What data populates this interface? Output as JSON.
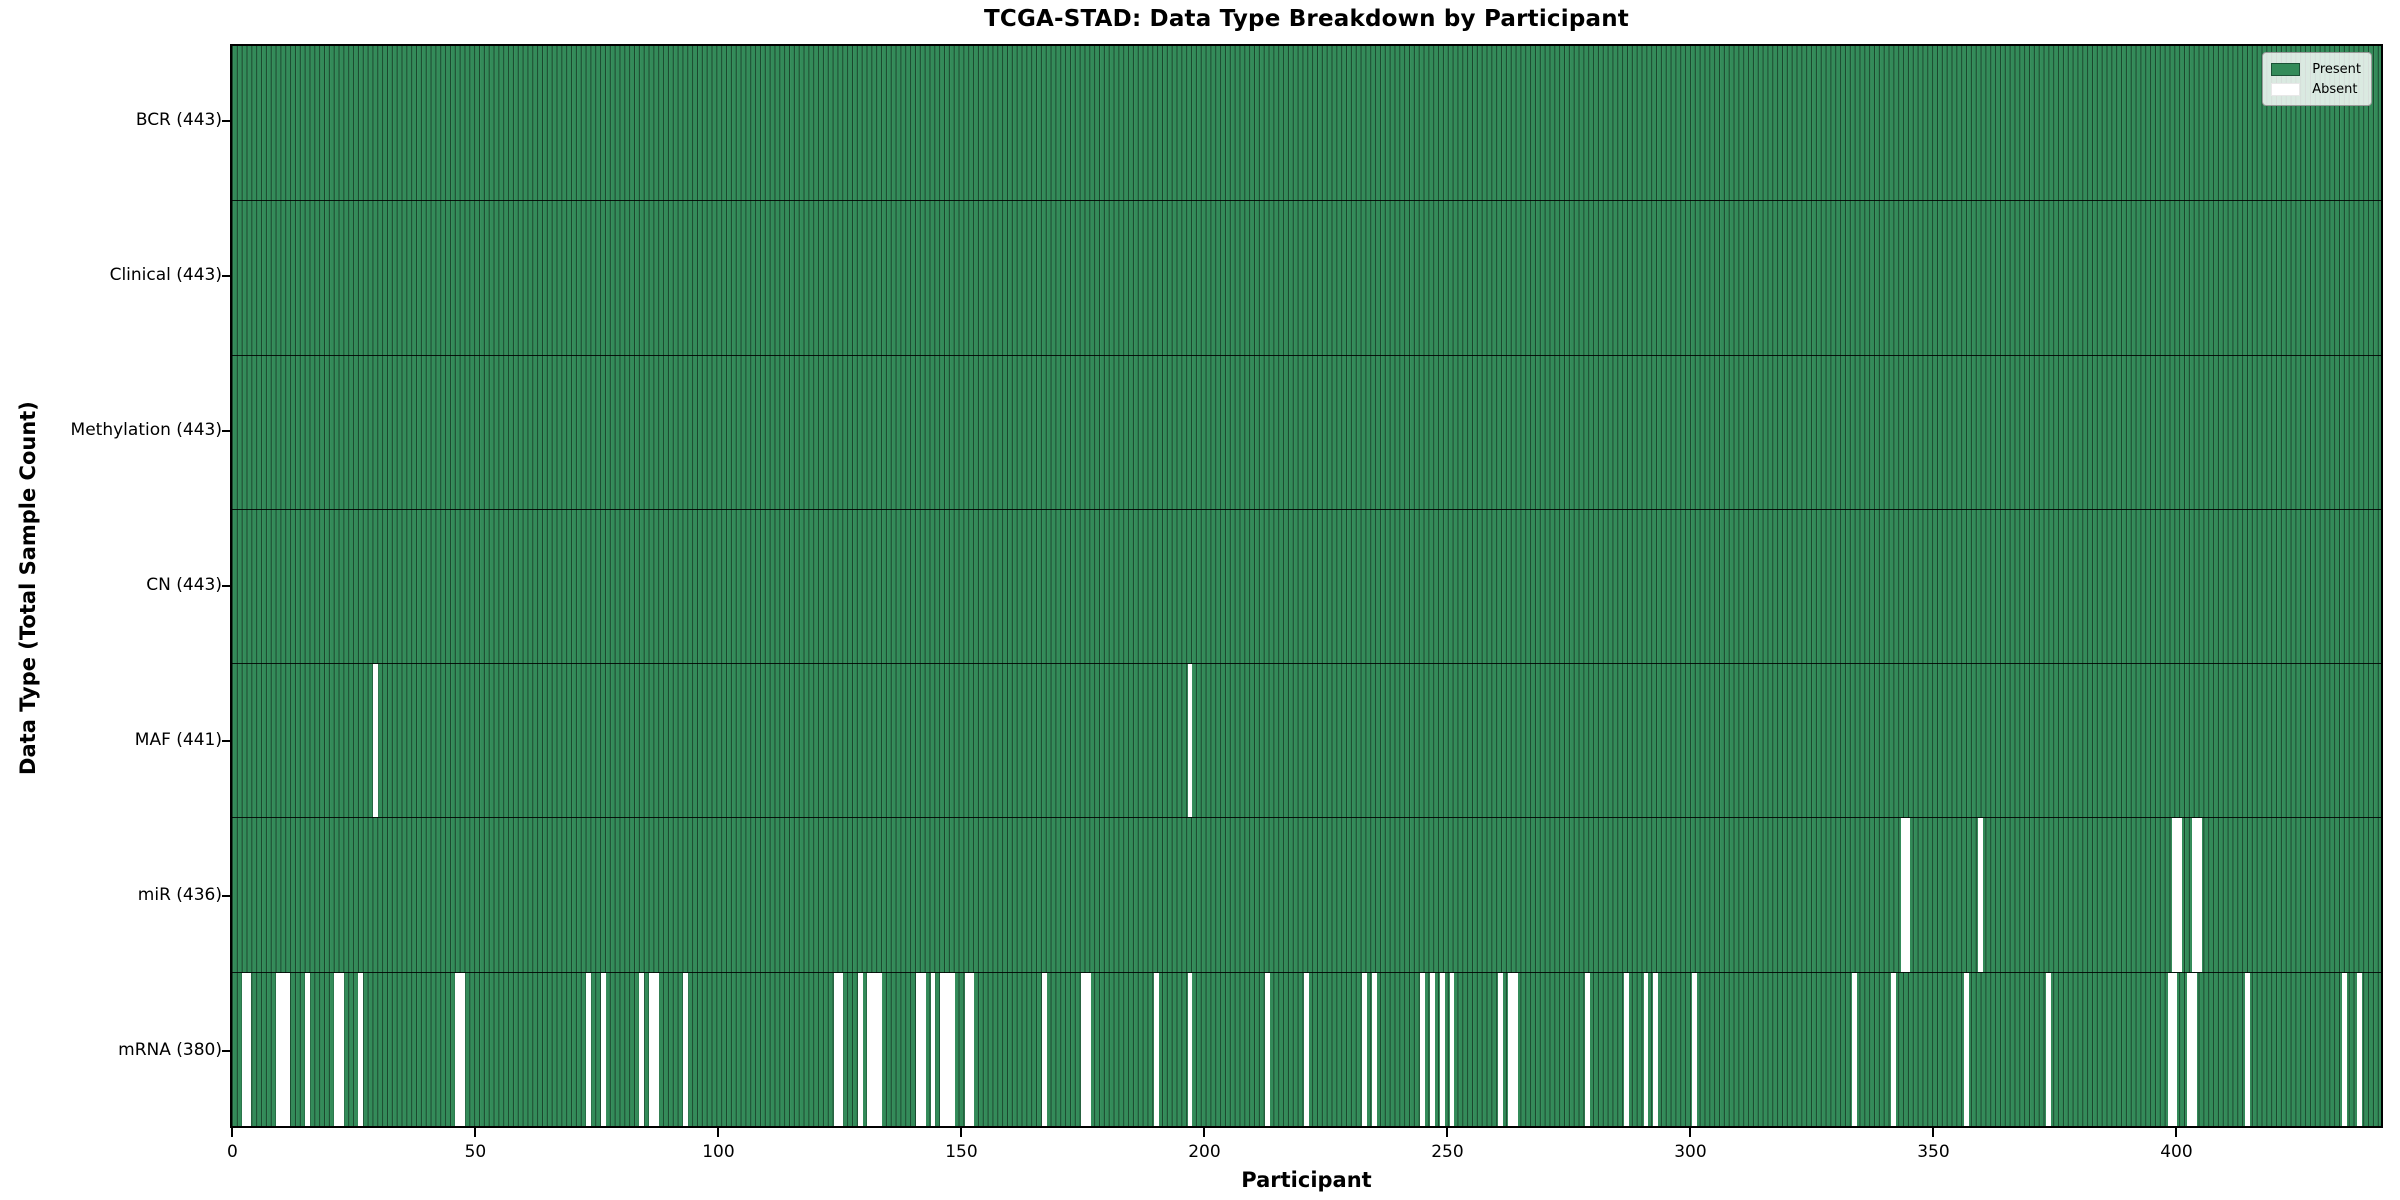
{
  "title": "TCGA-STAD: Data Type Breakdown by Participant",
  "axes": {
    "xlabel": "Participant",
    "ylabel": "Data Type (Total Sample Count)",
    "x_ticks": [
      0,
      50,
      100,
      150,
      200,
      250,
      300,
      350,
      400
    ],
    "x_range": [
      0,
      443
    ]
  },
  "legend": {
    "items": [
      {
        "label": "Present",
        "color": "#338b59"
      },
      {
        "label": "Absent",
        "color": "#ffffff"
      }
    ]
  },
  "colors": {
    "present": "#338b59",
    "absent": "#ffffff",
    "bar_edge": "rgba(0,0,0,0.5)",
    "frame": "#000000"
  },
  "chart_data": {
    "type": "heatmap",
    "title": "TCGA-STAD: Data Type Breakdown by Participant",
    "xlabel": "Participant",
    "ylabel": "Data Type (Total Sample Count)",
    "x_unit": "participant index",
    "n_participants": 443,
    "value_encoding": {
      "present": "green bar",
      "absent": "white gap"
    },
    "legend_position": "upper right",
    "rows": [
      {
        "name": "BCR",
        "label": "BCR (443)",
        "total": 443,
        "absent_participants": []
      },
      {
        "name": "Clinical",
        "label": "Clinical (443)",
        "total": 443,
        "absent_participants": []
      },
      {
        "name": "Methylation",
        "label": "Methylation (443)",
        "total": 443,
        "absent_participants": []
      },
      {
        "name": "CN",
        "label": "CN (443)",
        "total": 443,
        "absent_participants": []
      },
      {
        "name": "MAF",
        "label": "MAF (441)",
        "total": 441,
        "absent_participants": [
          29,
          197
        ]
      },
      {
        "name": "miR",
        "label": "miR (436)",
        "total": 436,
        "absent_participants": [
          344,
          345,
          360,
          400,
          401,
          404,
          405
        ]
      },
      {
        "name": "mRNA",
        "label": "mRNA (380)",
        "total": 380,
        "absent_participants": [
          2,
          3,
          9,
          10,
          11,
          15,
          21,
          22,
          26,
          46,
          47,
          73,
          76,
          84,
          86,
          87,
          93,
          124,
          125,
          129,
          131,
          132,
          133,
          141,
          142,
          144,
          146,
          147,
          148,
          151,
          152,
          167,
          175,
          176,
          190,
          197,
          213,
          221,
          233,
          235,
          245,
          247,
          249,
          251,
          261,
          263,
          264,
          279,
          287,
          291,
          293,
          301,
          334,
          342,
          357,
          374,
          399,
          400,
          403,
          404,
          415,
          435,
          438
        ]
      }
    ]
  }
}
